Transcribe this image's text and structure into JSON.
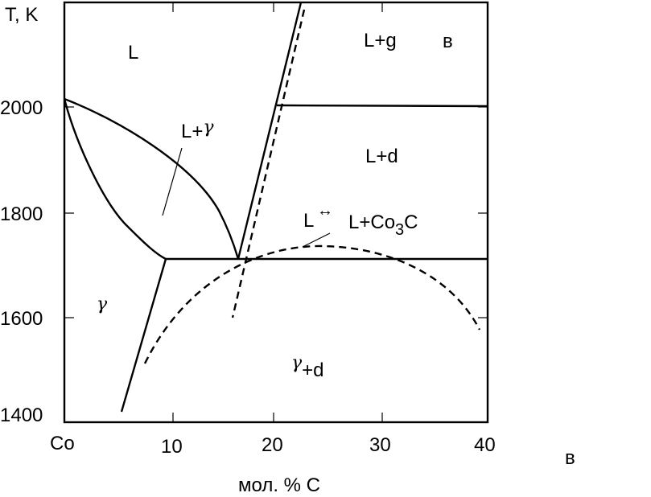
{
  "axes": {
    "y_title": "T, K",
    "x_title": "мол. % С",
    "x_origin_label": "Co",
    "y_ticks": [
      "2000",
      "1800",
      "1600",
      "1400"
    ],
    "x_ticks": [
      "10",
      "20",
      "30",
      "40"
    ]
  },
  "regions": {
    "liquid": "L",
    "liquid_gamma_prefix": "L+",
    "liquid_graphite": "L+g",
    "liquid_diamond": "L+d",
    "metastable_prefix": "L",
    "metastable_arrow": "↔",
    "metastable_main": "L+Co",
    "metastable_sub": "3",
    "metastable_c": "C",
    "gamma_diamond_suffix": "+d"
  },
  "symbols": {
    "gamma": "γ"
  },
  "panel_labels": {
    "inner": "в",
    "outer": "в"
  }
}
